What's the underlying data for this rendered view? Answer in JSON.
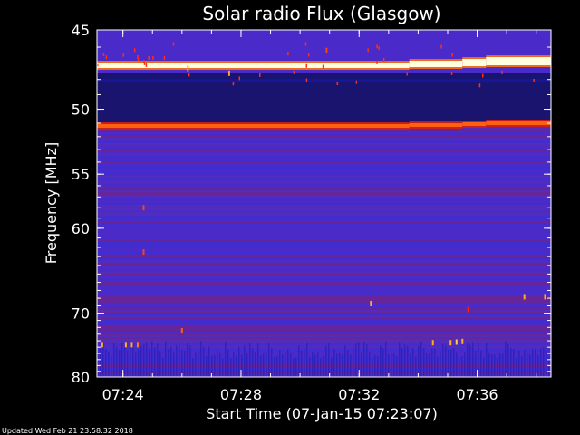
{
  "chart_data": {
    "type": "heatmap",
    "title": "Solar radio Flux (Glasgow)",
    "xlabel": "Start Time (07-Jan-15 07:23:07)",
    "ylabel_text": "Frequency",
    "ylabel_unit": "MHz",
    "footer": "Updated Wed Feb 21 23:58:32 2018",
    "x_axis": {
      "start_minutes": 443.12,
      "end_minutes": 458.5,
      "ticks": [
        {
          "label": "07:24",
          "minutes": 444
        },
        {
          "label": "07:28",
          "minutes": 448
        },
        {
          "label": "07:32",
          "minutes": 452
        },
        {
          "label": "07:36",
          "minutes": 456
        }
      ]
    },
    "y_axis": {
      "range": [
        45,
        80
      ],
      "scale": "reciprocal",
      "ticks": [
        45,
        50,
        55,
        60,
        70,
        80
      ]
    },
    "colormap": [
      "#101060",
      "#1818b0",
      "#3030e0",
      "#5a30b0",
      "#8a2060",
      "#d02010",
      "#ff7010",
      "#ffff80",
      "#ffffff"
    ],
    "background_level_color": "#4a2ac8",
    "emission_bands": [
      {
        "name": "strong-line",
        "freq_mhz": 47.1,
        "color": "#ffffe0",
        "step_changes_at_minutes": [
          453.7,
          455.5,
          456.3
        ]
      },
      {
        "name": "secondary-line",
        "freq_mhz": 51.2,
        "color": "#ff6010",
        "step_changes_at_minutes": [
          453.7,
          455.5,
          456.3
        ]
      }
    ],
    "dark_blue_zone_mhz": [
      47.6,
      51.0
    ],
    "grid": false,
    "legend": "none"
  }
}
